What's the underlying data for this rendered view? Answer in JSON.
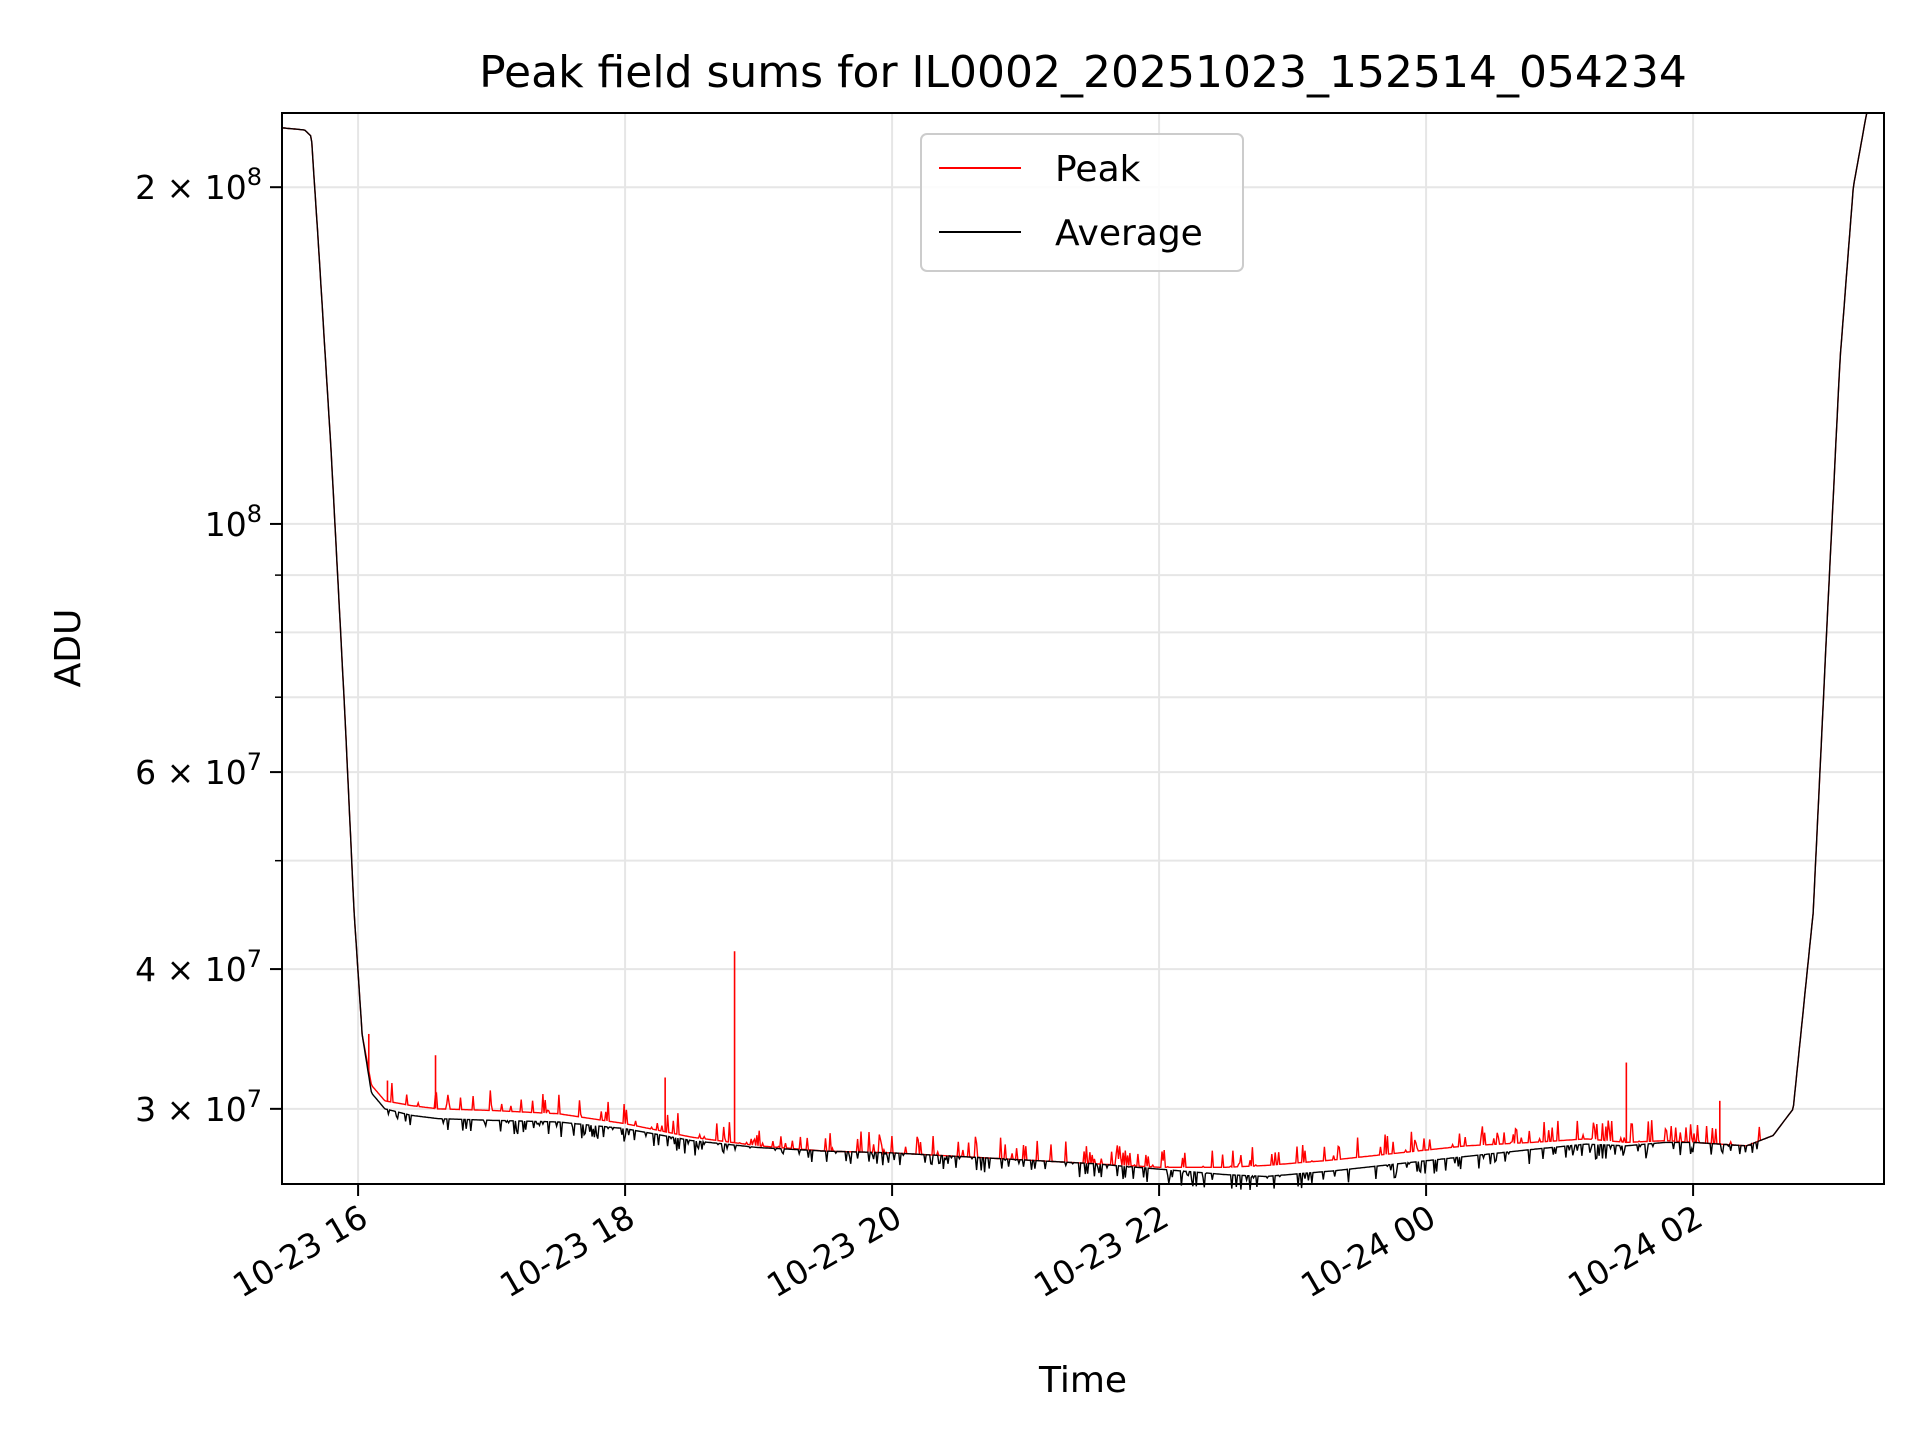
{
  "chart_data": {
    "type": "line",
    "title": "Peak field sums for IL0002_20251023_152514_054234",
    "xlabel": "Time",
    "ylabel": "ADU",
    "yscale": "log",
    "xlim_hours": [
      15.43,
      27.43
    ],
    "ylim": [
      25700000,
      233000000
    ],
    "grid": true,
    "legend_position": "upper center",
    "x_ticks": [
      {
        "hour": 16,
        "label": "10-23 16"
      },
      {
        "hour": 18,
        "label": "10-23 18"
      },
      {
        "hour": 20,
        "label": "10-23 20"
      },
      {
        "hour": 22,
        "label": "10-23 22"
      },
      {
        "hour": 24,
        "label": "10-24 00"
      },
      {
        "hour": 26,
        "label": "10-24 02"
      }
    ],
    "y_major_ticks": [
      {
        "value": 200000000,
        "coef": "2 × 10",
        "exp": "8"
      },
      {
        "value": 100000000,
        "coef": "10",
        "exp": "8"
      },
      {
        "value": 60000000,
        "coef": "6 × 10",
        "exp": "7"
      },
      {
        "value": 40000000,
        "coef": "4 × 10",
        "exp": "7"
      },
      {
        "value": 30000000,
        "coef": "3 × 10",
        "exp": "7"
      }
    ],
    "y_minor_ticks": [
      90000000,
      80000000,
      70000000,
      50000000
    ],
    "series": [
      {
        "name": "Peak",
        "color": "#ff0000",
        "x_hours": [
          15.43,
          15.6,
          15.65,
          15.7,
          15.8,
          15.9,
          15.97,
          16.03,
          16.1,
          16.2,
          16.4,
          16.6,
          17.0,
          17.5,
          18.0,
          18.5,
          19.0,
          19.5,
          20.0,
          20.5,
          21.0,
          21.5,
          22.0,
          22.5,
          22.8,
          23.3,
          23.8,
          24.3,
          24.8,
          25.2,
          25.5,
          25.8,
          26.0,
          26.4,
          26.6,
          26.75,
          26.9,
          27.0,
          27.1,
          27.2,
          27.3,
          27.43
        ],
        "values": [
          226000000,
          225000000,
          222000000,
          180000000,
          115000000,
          68000000,
          45000000,
          35000000,
          31500000,
          30500000,
          30200000,
          30000000,
          29900000,
          29700000,
          29100000,
          28300000,
          27800000,
          27500000,
          27400000,
          27200000,
          27000000,
          26800000,
          26600000,
          26600000,
          26700000,
          27000000,
          27400000,
          27800000,
          28000000,
          28200000,
          28000000,
          28100000,
          28000000,
          27800000,
          28400000,
          30000000,
          45000000,
          80000000,
          140000000,
          200000000,
          233000000,
          233000000
        ],
        "spikes": [
          {
            "hour": 16.08,
            "value": 35000000
          },
          {
            "hour": 16.22,
            "value": 31800000
          },
          {
            "hour": 16.58,
            "value": 33500000
          },
          {
            "hour": 18.3,
            "value": 32000000
          },
          {
            "hour": 18.82,
            "value": 41500000
          },
          {
            "hour": 25.5,
            "value": 33000000
          },
          {
            "hour": 26.2,
            "value": 30500000
          }
        ]
      },
      {
        "name": "Average",
        "color": "#000000",
        "x_hours": [
          15.43,
          15.6,
          15.65,
          15.7,
          15.8,
          15.9,
          15.97,
          16.03,
          16.1,
          16.2,
          16.4,
          16.6,
          17.0,
          17.5,
          18.0,
          18.5,
          19.0,
          19.5,
          20.0,
          20.5,
          21.0,
          21.5,
          22.0,
          22.5,
          22.8,
          23.3,
          23.8,
          24.3,
          24.8,
          25.2,
          25.5,
          25.8,
          26.0,
          26.4,
          26.6,
          26.75,
          26.9,
          27.0,
          27.1,
          27.2,
          27.3,
          27.43
        ],
        "values": [
          226000000,
          225000000,
          222000000,
          180000000,
          115000000,
          68000000,
          45000000,
          35000000,
          31000000,
          30000000,
          29600000,
          29400000,
          29300000,
          29200000,
          28800000,
          28100000,
          27700000,
          27500000,
          27400000,
          27200000,
          27000000,
          26800000,
          26500000,
          26200000,
          26100000,
          26400000,
          26800000,
          27200000,
          27600000,
          27900000,
          27800000,
          28000000,
          28000000,
          27800000,
          28400000,
          30000000,
          45000000,
          80000000,
          140000000,
          200000000,
          233000000,
          233000000
        ]
      }
    ]
  }
}
